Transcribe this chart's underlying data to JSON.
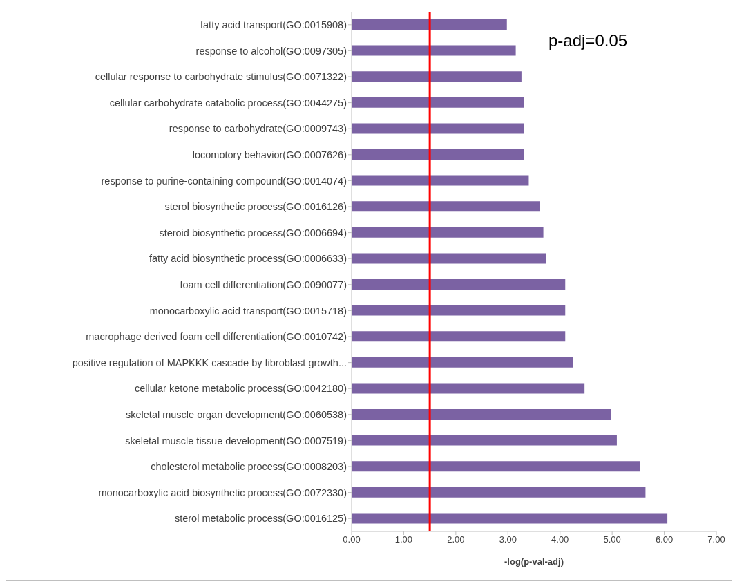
{
  "chart_data": {
    "type": "bar",
    "orientation": "horizontal",
    "xlabel": "-log(p-val-adj)",
    "categories": [
      "fatty acid transport(GO:0015908)",
      "response to alcohol(GO:0097305)",
      "cellular response to carbohydrate stimulus(GO:0071322)",
      "cellular carbohydrate catabolic process(GO:0044275)",
      "response to carbohydrate(GO:0009743)",
      "locomotory behavior(GO:0007626)",
      "response to purine-containing compound(GO:0014074)",
      "sterol biosynthetic process(GO:0016126)",
      "steroid biosynthetic process(GO:0006694)",
      "fatty acid biosynthetic process(GO:0006633)",
      "foam cell differentiation(GO:0090077)",
      "monocarboxylic acid transport(GO:0015718)",
      "macrophage derived foam cell differentiation(GO:0010742)",
      "positive regulation of MAPKKK cascade by fibroblast growth...",
      "cellular ketone metabolic process(GO:0042180)",
      "skeletal muscle organ development(GO:0060538)",
      "skeletal muscle tissue development(GO:0007519)",
      "cholesterol metabolic process(GO:0008203)",
      "monocarboxylic acid biosynthetic process(GO:0072330)",
      "sterol metabolic process(GO:0016125)"
    ],
    "values": [
      2.98,
      3.15,
      3.26,
      3.31,
      3.31,
      3.31,
      3.4,
      3.61,
      3.68,
      3.73,
      4.1,
      4.1,
      4.1,
      4.25,
      4.47,
      4.98,
      5.09,
      5.53,
      5.64,
      6.06
    ],
    "color": "#7b62a3",
    "xlim": [
      0,
      7
    ],
    "xticks": [
      {
        "value": 0,
        "label": "0.00"
      },
      {
        "value": 1,
        "label": "1.00"
      },
      {
        "value": 2,
        "label": "2.00"
      },
      {
        "value": 3,
        "label": "3.00"
      },
      {
        "value": 4,
        "label": "4.00"
      },
      {
        "value": 5,
        "label": "5.00"
      },
      {
        "value": 6,
        "label": "6.00"
      },
      {
        "value": 7,
        "label": "7.00"
      }
    ],
    "ref_lines": [
      {
        "axis": "x",
        "value": 1.5,
        "color": "#ff0000",
        "line_style": "solid"
      }
    ],
    "annotations": [
      "p-adj=0.05"
    ],
    "grid": false,
    "legend": false
  }
}
